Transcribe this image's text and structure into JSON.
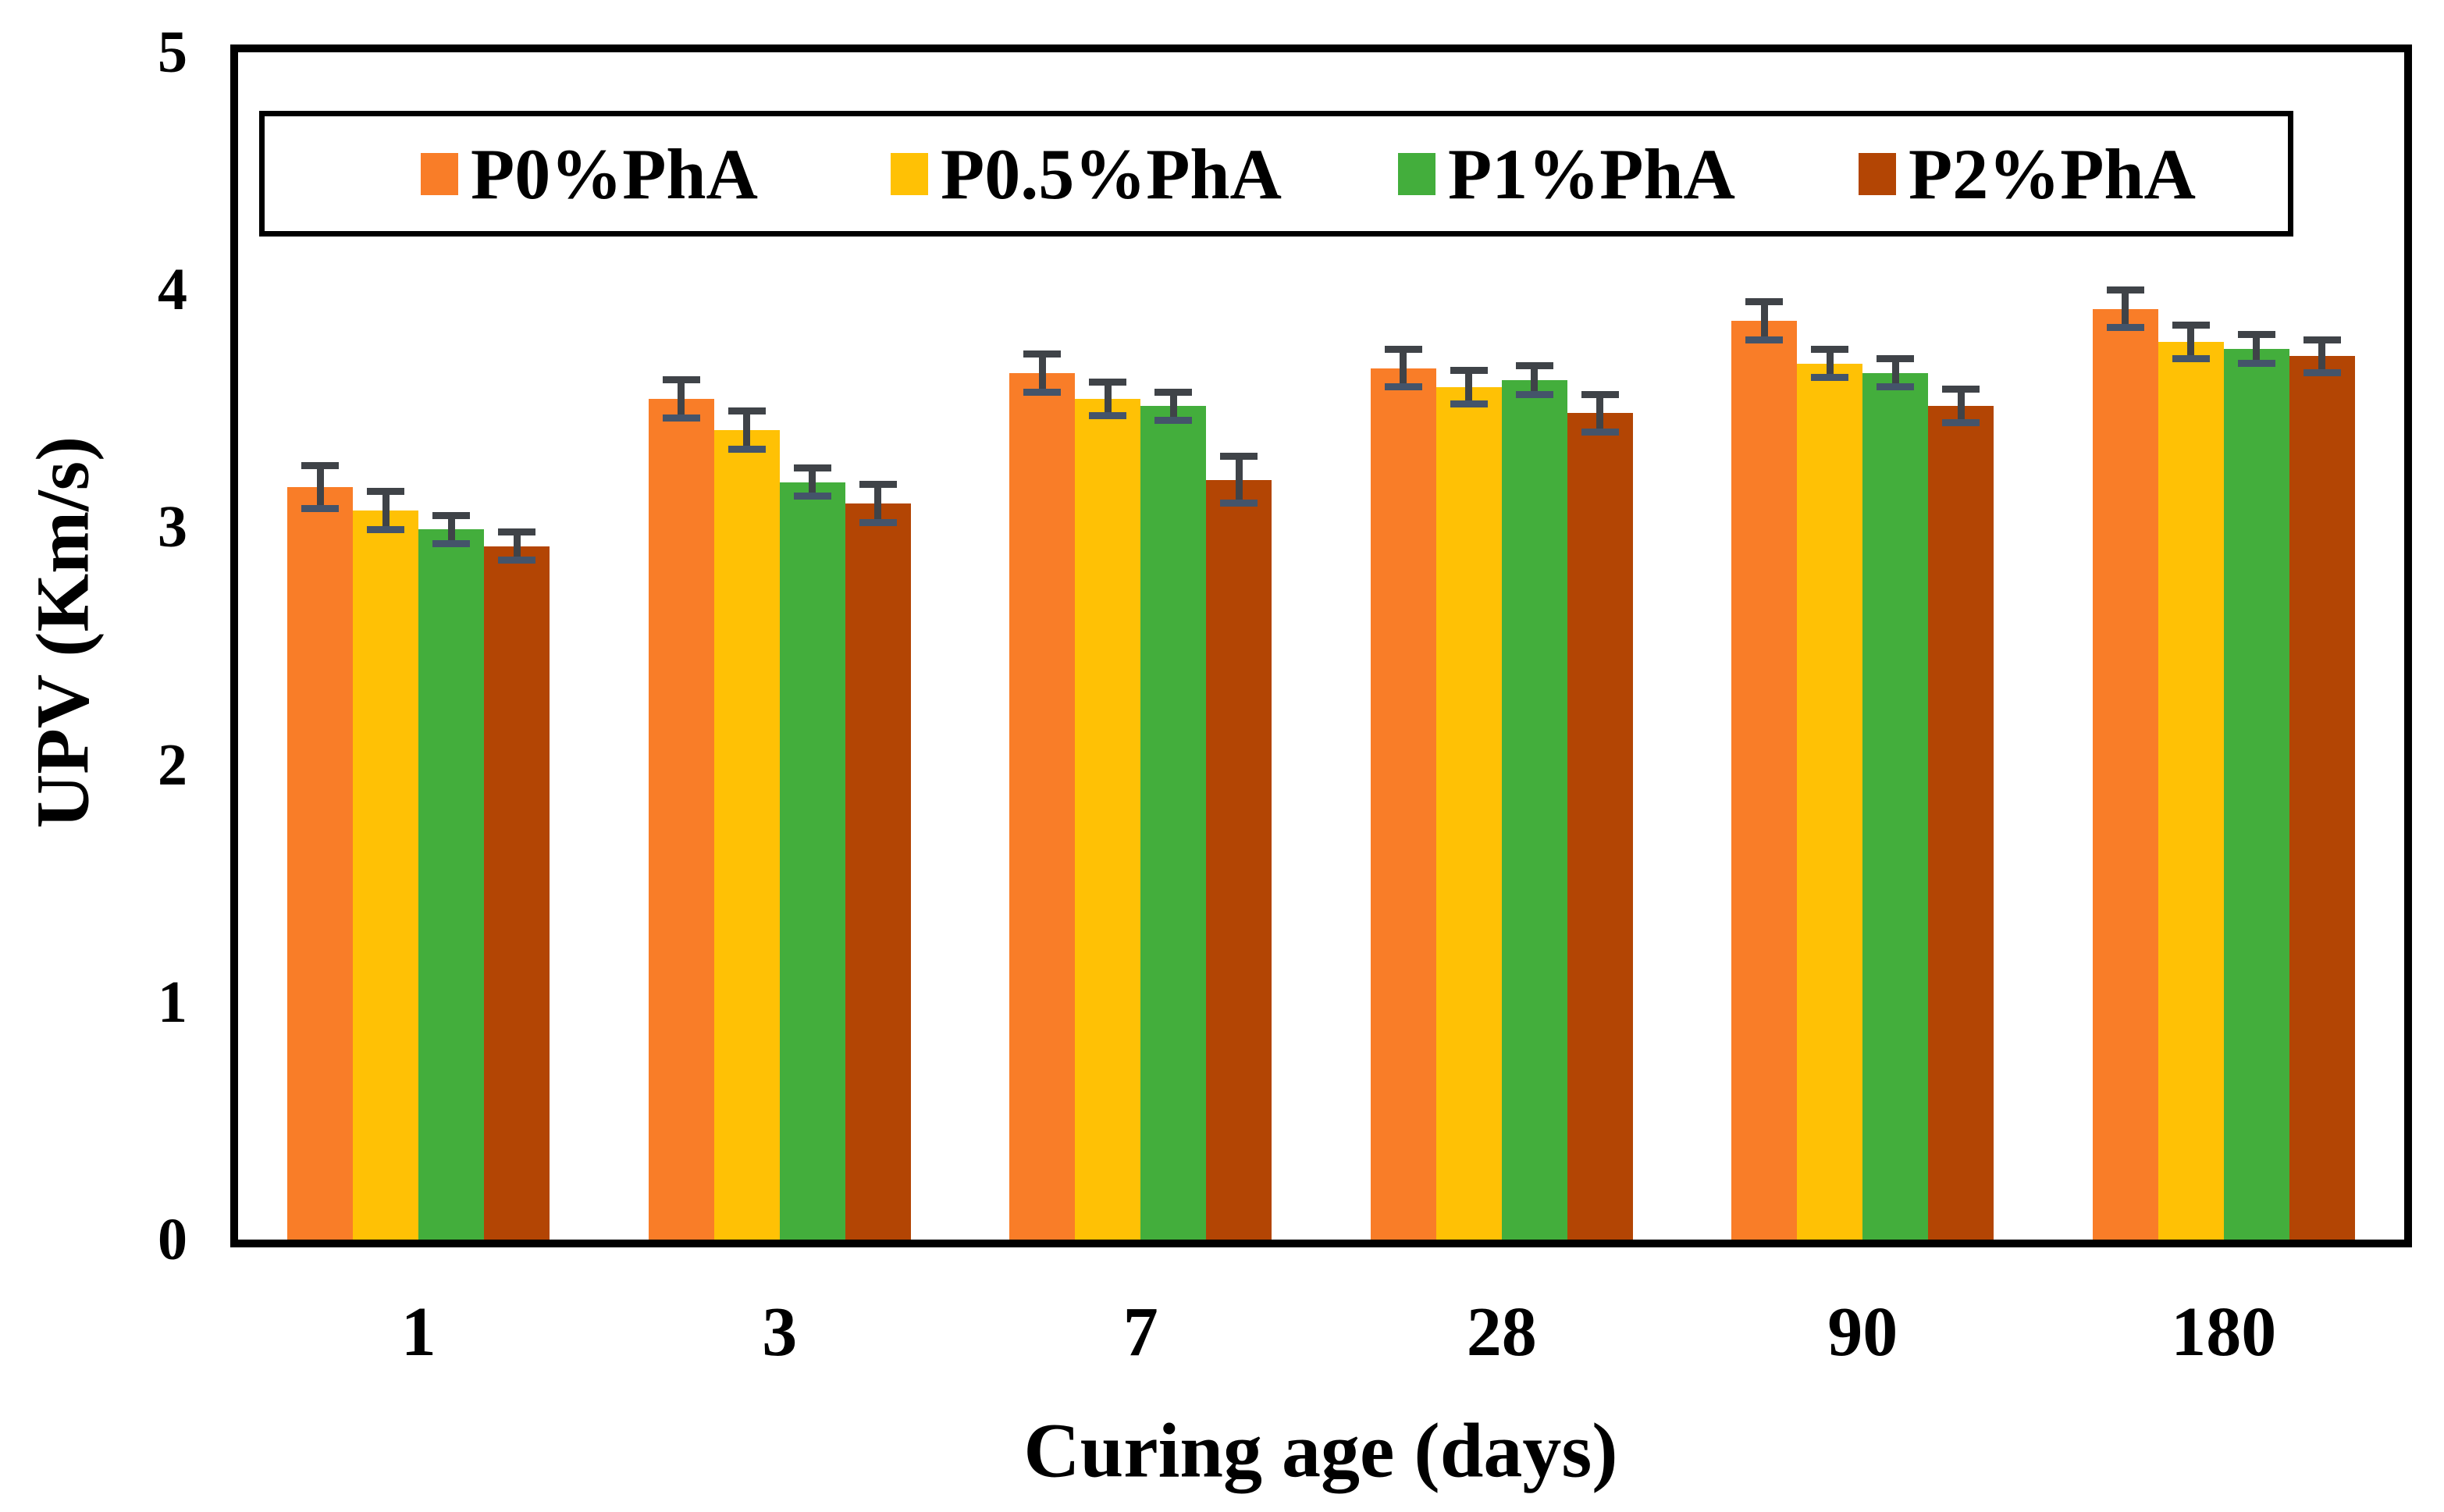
{
  "chart_data": {
    "type": "bar",
    "title": "",
    "xlabel": "Curing age (days)",
    "ylabel": "UPV (Km/s)",
    "categories": [
      "1",
      "3",
      "7",
      "28",
      "90",
      "180"
    ],
    "series": [
      {
        "name": "P0%PhA",
        "color": "#F97D28",
        "values": [
          3.17,
          3.54,
          3.65,
          3.67,
          3.87,
          3.92
        ],
        "errors": [
          0.09,
          0.08,
          0.08,
          0.08,
          0.08,
          0.08
        ]
      },
      {
        "name": "P0.5%PhA",
        "color": "#FFC105",
        "values": [
          3.07,
          3.41,
          3.54,
          3.59,
          3.69,
          3.78
        ],
        "errors": [
          0.08,
          0.08,
          0.07,
          0.07,
          0.06,
          0.07
        ]
      },
      {
        "name": "P1%PhA",
        "color": "#43AE3C",
        "values": [
          2.99,
          3.19,
          3.51,
          3.62,
          3.65,
          3.75
        ],
        "errors": [
          0.06,
          0.06,
          0.06,
          0.06,
          0.06,
          0.06
        ]
      },
      {
        "name": "P2%PhA",
        "color": "#B34504",
        "values": [
          2.92,
          3.1,
          3.2,
          3.48,
          3.51,
          3.72
        ],
        "errors": [
          0.06,
          0.08,
          0.1,
          0.08,
          0.07,
          0.07
        ]
      }
    ],
    "ylim": [
      0,
      5
    ],
    "yticks": [
      0,
      1,
      2,
      3,
      4,
      5
    ],
    "grid": false,
    "legend_position": "top-inside",
    "error_bars": true,
    "error_bar_color": "#3F4348",
    "error_bar_bottom_cap_color": "#44546A",
    "frame_color": "#000000",
    "background": "#FFFFFF"
  }
}
